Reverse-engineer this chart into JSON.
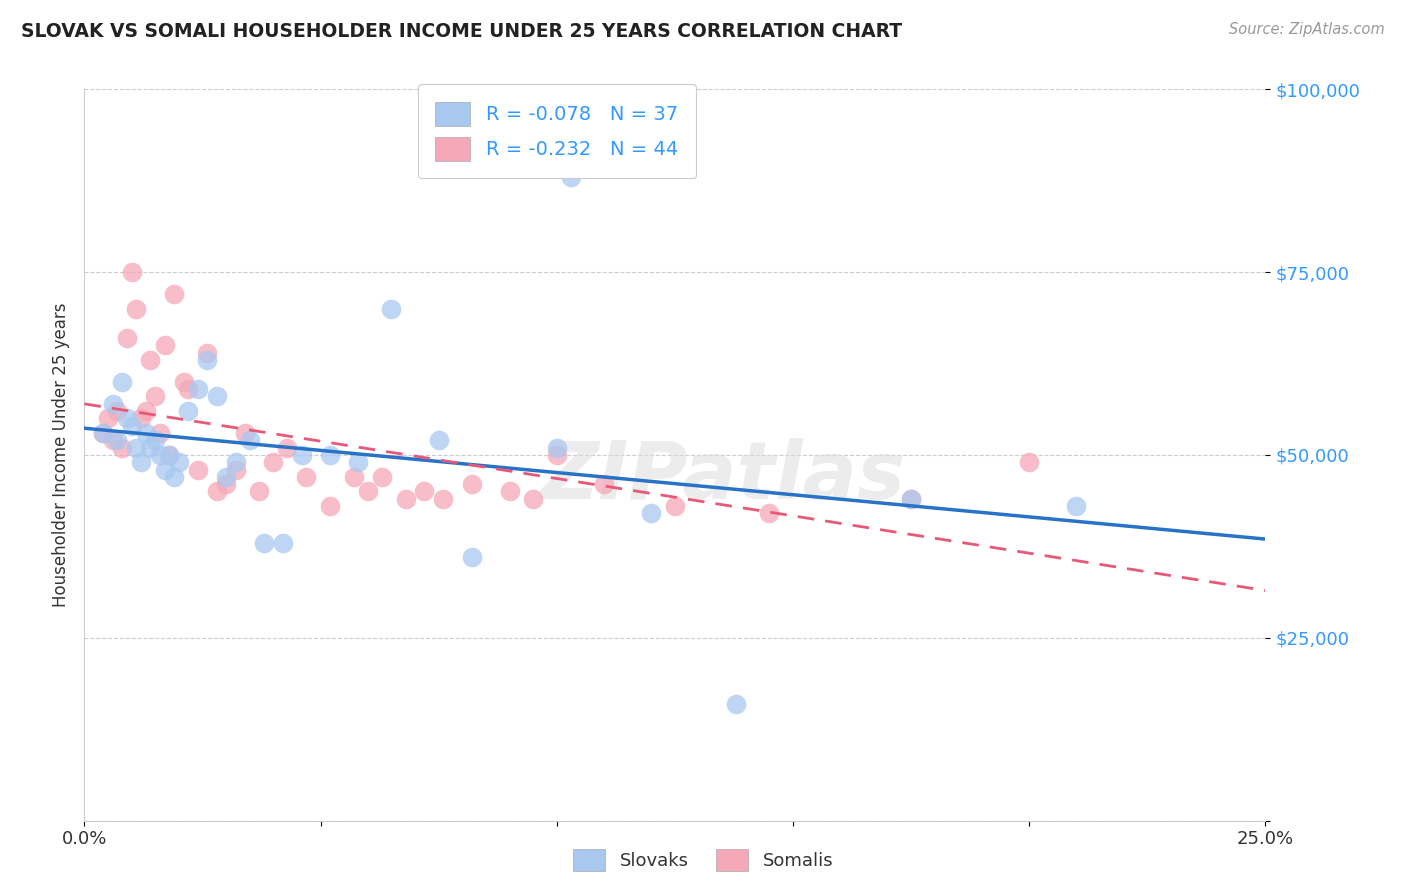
{
  "title": "SLOVAK VS SOMALI HOUSEHOLDER INCOME UNDER 25 YEARS CORRELATION CHART",
  "source": "Source: ZipAtlas.com",
  "ylabel": "Householder Income Under 25 years",
  "xlim": [
    0.0,
    0.25
  ],
  "ylim": [
    0,
    100000
  ],
  "yticks": [
    0,
    25000,
    50000,
    75000,
    100000
  ],
  "ytick_labels": [
    "",
    "$25,000",
    "$50,000",
    "$75,000",
    "$100,000"
  ],
  "xticks": [
    0.0,
    0.05,
    0.1,
    0.15,
    0.2,
    0.25
  ],
  "xtick_labels": [
    "0.0%",
    "",
    "",
    "",
    "",
    "25.0%"
  ],
  "legend_R_slovak": "-0.078",
  "legend_N_slovak": "37",
  "legend_R_somali": "-0.232",
  "legend_N_somali": "44",
  "slovak_color": "#a8c8f0",
  "somali_color": "#f5a8b8",
  "slovak_line_color": "#2872c8",
  "somali_line_color": "#e85878",
  "right_label_color": "#3399ff",
  "background_color": "#ffffff",
  "watermark": "ZIPatlas",
  "slovak_x": [
    0.004,
    0.006,
    0.007,
    0.008,
    0.009,
    0.01,
    0.011,
    0.012,
    0.013,
    0.014,
    0.015,
    0.016,
    0.017,
    0.018,
    0.019,
    0.02,
    0.022,
    0.024,
    0.026,
    0.028,
    0.03,
    0.032,
    0.035,
    0.038,
    0.042,
    0.046,
    0.052,
    0.058,
    0.065,
    0.075,
    0.082,
    0.1,
    0.103,
    0.138,
    0.175,
    0.21,
    0.12
  ],
  "slovak_y": [
    53000,
    57000,
    52000,
    60000,
    55000,
    54000,
    51000,
    49000,
    53000,
    51000,
    52000,
    50000,
    48000,
    50000,
    47000,
    49000,
    56000,
    59000,
    63000,
    58000,
    47000,
    49000,
    52000,
    38000,
    38000,
    50000,
    50000,
    49000,
    70000,
    52000,
    36000,
    51000,
    88000,
    16000,
    44000,
    43000,
    42000
  ],
  "somali_x": [
    0.004,
    0.005,
    0.006,
    0.007,
    0.008,
    0.009,
    0.01,
    0.011,
    0.012,
    0.013,
    0.014,
    0.015,
    0.016,
    0.017,
    0.018,
    0.019,
    0.021,
    0.022,
    0.024,
    0.026,
    0.028,
    0.03,
    0.032,
    0.034,
    0.037,
    0.04,
    0.043,
    0.047,
    0.052,
    0.057,
    0.06,
    0.063,
    0.068,
    0.072,
    0.076,
    0.082,
    0.09,
    0.095,
    0.1,
    0.11,
    0.125,
    0.145,
    0.175,
    0.2
  ],
  "somali_y": [
    53000,
    55000,
    52000,
    56000,
    51000,
    66000,
    75000,
    70000,
    55000,
    56000,
    63000,
    58000,
    53000,
    65000,
    50000,
    72000,
    60000,
    59000,
    48000,
    64000,
    45000,
    46000,
    48000,
    53000,
    45000,
    49000,
    51000,
    47000,
    43000,
    47000,
    45000,
    47000,
    44000,
    45000,
    44000,
    46000,
    45000,
    44000,
    50000,
    46000,
    43000,
    42000,
    44000,
    49000
  ]
}
